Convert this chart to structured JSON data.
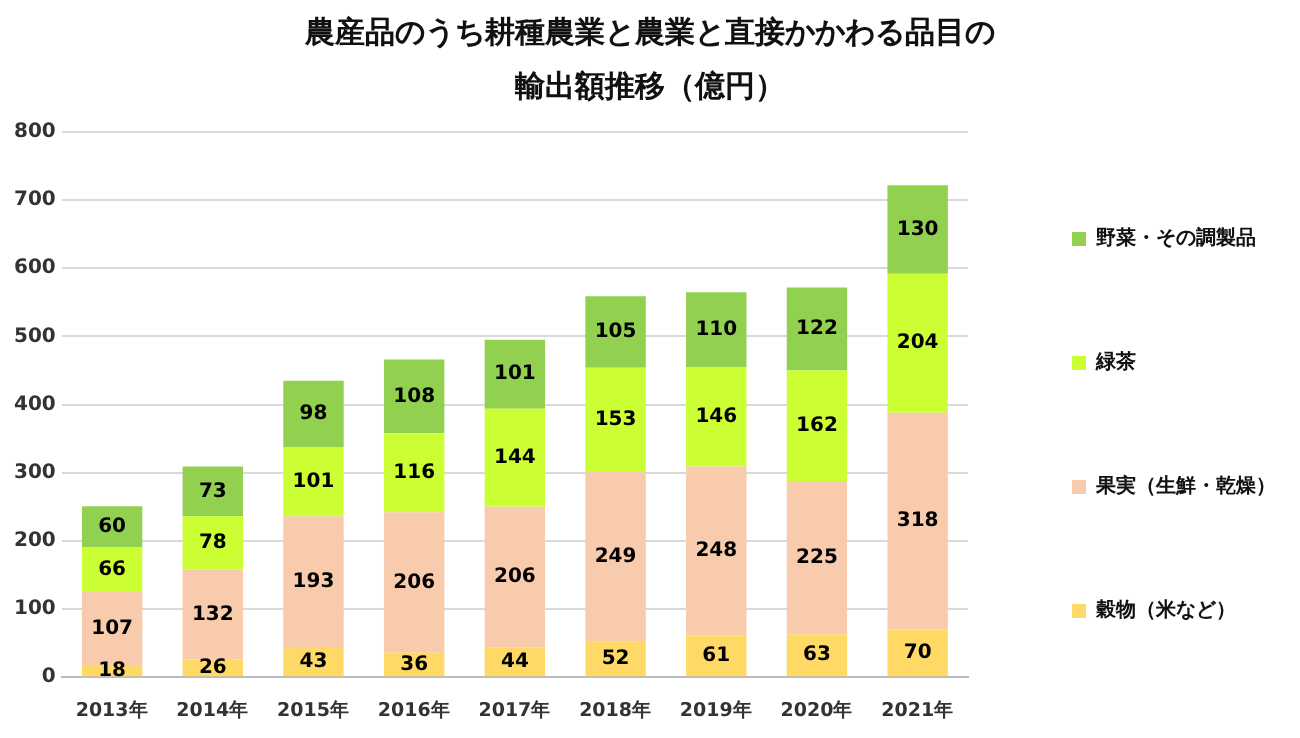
{
  "chart_data": {
    "type": "bar",
    "title": "農産品のうち耕種農業と農業と直接かかわる品目の輸出額推移（億円）",
    "categories": [
      "2013年",
      "2014年",
      "2015年",
      "2016年",
      "2017年",
      "2018年",
      "2019年",
      "2020年",
      "2021年"
    ],
    "series": [
      {
        "name": "穀物（米など）",
        "color": "#ffd966",
        "values": [
          18,
          26,
          43,
          36,
          44,
          52,
          61,
          63,
          70
        ]
      },
      {
        "name": "果実（生鮮・乾燥）",
        "color": "#f8cbad",
        "values": [
          107,
          132,
          193,
          206,
          206,
          249,
          248,
          225,
          318
        ]
      },
      {
        "name": "緑茶",
        "color": "#ccff33",
        "values": [
          66,
          78,
          101,
          116,
          144,
          153,
          146,
          162,
          204
        ]
      },
      {
        "name": "野菜・その調製品",
        "color": "#92d050",
        "values": [
          60,
          73,
          98,
          108,
          101,
          105,
          110,
          122,
          130
        ]
      }
    ],
    "stacked": true,
    "ylim": [
      0,
      800
    ],
    "yticks": [
      0,
      100,
      200,
      300,
      400,
      500,
      600,
      700,
      800
    ],
    "grid": "y",
    "legend": "right",
    "data_labels": true
  }
}
